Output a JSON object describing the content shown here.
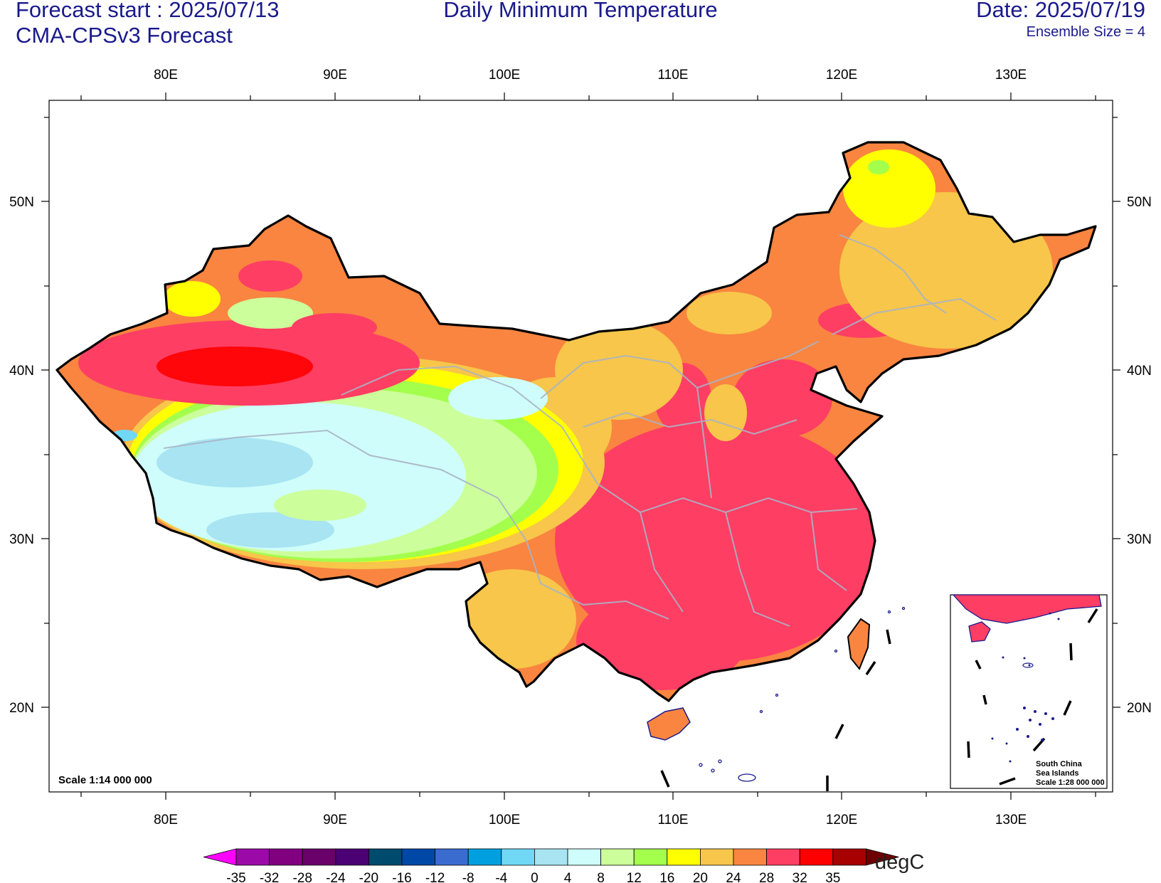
{
  "header": {
    "forecast_start": "Forecast start : 2025/07/13",
    "model": "CMA-CPSv3 Forecast",
    "title": "Daily Minimum Temperature",
    "date": "Date: 2025/07/19",
    "ensemble": "Ensemble Size = 4"
  },
  "map": {
    "lon_ticks": [
      "80E",
      "90E",
      "100E",
      "110E",
      "120E",
      "130E"
    ],
    "lat_ticks": [
      "50N",
      "40N",
      "30N",
      "20N"
    ],
    "scale_label": "Scale 1:14 000 000",
    "inset": {
      "line1": "South China",
      "line2": "Sea Islands",
      "line3": "Scale 1:28 000 000"
    }
  },
  "colorbar": {
    "unit": "degC",
    "labels": [
      "-35",
      "-32",
      "-28",
      "-24",
      "-20",
      "-16",
      "-12",
      "-8",
      "-4",
      "0",
      "4",
      "8",
      "12",
      "16",
      "20",
      "24",
      "28",
      "32",
      "35"
    ],
    "colors": [
      "#9b0aa8",
      "#800080",
      "#6a006a",
      "#4b0073",
      "#004a6e",
      "#0048a8",
      "#3a6cd0",
      "#00a0e0",
      "#70d8f5",
      "#a8e4f2",
      "#cffdfb",
      "#ccff9b",
      "#a3ff4c",
      "#ffff00",
      "#f7c64a",
      "#f98540",
      "#ff3e64",
      "#ff0000",
      "#a80000"
    ],
    "low_end_color": "#ff00ff",
    "high_end_color": "#6e0000"
  }
}
